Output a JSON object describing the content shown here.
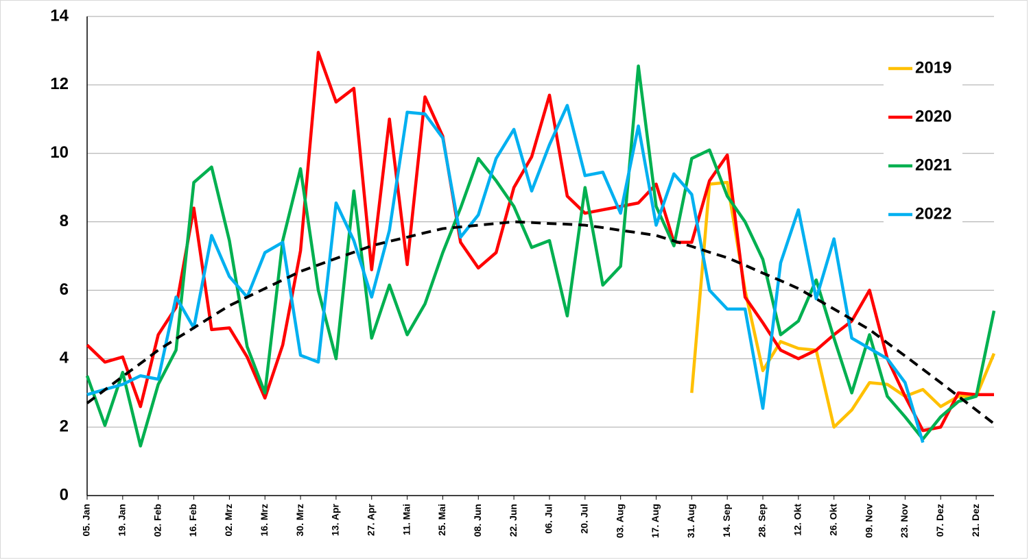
{
  "chart_data": {
    "type": "line",
    "categories": [
      "05. Jan",
      null,
      "19. Jan",
      null,
      "02. Feb",
      null,
      "16. Feb",
      null,
      "02. Mrz",
      null,
      "16. Mrz",
      null,
      "30. Mrz",
      null,
      "13. Apr",
      null,
      "27. Apr",
      null,
      "11. Mai",
      null,
      "25. Mai",
      null,
      "08. Jun",
      null,
      "22. Jun",
      null,
      "06. Jul",
      null,
      "20. Jul",
      null,
      "03. Aug",
      null,
      "17. Aug",
      null,
      "31. Aug",
      null,
      "14. Sep",
      null,
      "28. Sep",
      null,
      "12. Okt",
      null,
      "26. Okt",
      null,
      "09. Nov",
      null,
      "23. Nov",
      null,
      "07. Dez",
      null,
      "21. Dez",
      null
    ],
    "series": [
      {
        "name": "2019",
        "color": "#ffc000",
        "values": [
          null,
          null,
          null,
          null,
          null,
          null,
          null,
          null,
          null,
          null,
          null,
          null,
          null,
          null,
          null,
          null,
          null,
          null,
          null,
          null,
          null,
          null,
          null,
          null,
          null,
          null,
          null,
          null,
          null,
          null,
          null,
          null,
          null,
          null,
          3.0,
          9.1,
          9.15,
          6.0,
          3.65,
          4.5,
          4.3,
          4.25,
          2.0,
          2.5,
          3.3,
          3.25,
          2.9,
          3.1,
          2.6,
          2.9,
          2.9,
          4.15
        ]
      },
      {
        "name": "2020",
        "color": "#ff0000",
        "values": [
          4.4,
          3.9,
          4.05,
          2.6,
          4.7,
          5.5,
          8.4,
          4.85,
          4.9,
          4.05,
          2.85,
          4.4,
          7.15,
          12.95,
          11.5,
          11.9,
          6.6,
          11.0,
          6.75,
          11.65,
          10.5,
          7.4,
          6.65,
          7.1,
          9.0,
          9.9,
          11.7,
          8.75,
          8.25,
          8.35,
          8.45,
          8.55,
          9.1,
          7.4,
          7.4,
          9.2,
          9.95,
          5.8,
          5.05,
          4.25,
          4.0,
          4.25,
          4.7,
          5.1,
          6.0,
          4.0,
          2.9,
          1.9,
          2.0,
          3.0,
          2.95,
          2.95
        ]
      },
      {
        "name": "2021",
        "color": "#00b050",
        "values": [
          3.5,
          2.05,
          3.6,
          1.45,
          3.25,
          4.25,
          9.15,
          9.6,
          7.45,
          4.35,
          3.0,
          7.45,
          9.55,
          6.0,
          4.0,
          8.9,
          4.6,
          6.15,
          4.7,
          5.6,
          7.1,
          8.4,
          9.85,
          9.2,
          8.45,
          7.25,
          7.45,
          5.25,
          9.0,
          6.15,
          6.7,
          12.55,
          8.45,
          7.3,
          9.85,
          10.1,
          8.75,
          8.0,
          6.9,
          4.7,
          5.1,
          6.3,
          4.6,
          3.0,
          4.7,
          2.9,
          2.3,
          1.65,
          2.3,
          2.75,
          2.9,
          5.4
        ]
      },
      {
        "name": "2022",
        "color": "#00b0f0",
        "values": [
          2.95,
          3.1,
          3.25,
          3.5,
          3.4,
          5.8,
          4.9,
          7.6,
          6.4,
          5.8,
          7.1,
          7.4,
          4.1,
          3.9,
          8.55,
          7.45,
          5.8,
          7.75,
          11.2,
          11.15,
          10.45,
          7.55,
          8.2,
          9.85,
          10.7,
          8.9,
          10.25,
          11.4,
          9.35,
          9.45,
          8.25,
          10.8,
          7.9,
          9.4,
          8.8,
          6.0,
          5.45,
          5.45,
          2.55,
          6.8,
          8.35,
          5.75,
          7.5,
          4.6,
          4.3,
          4.0,
          3.3,
          1.55,
          null,
          null,
          null,
          null
        ]
      },
      {
        "color": "#000000",
        "dash": true,
        "values": [
          2.7,
          3.09,
          3.48,
          3.86,
          4.25,
          4.58,
          4.9,
          5.23,
          5.55,
          5.8,
          6.05,
          6.3,
          6.55,
          6.74,
          6.93,
          7.11,
          7.3,
          7.43,
          7.55,
          7.68,
          7.8,
          7.85,
          7.9,
          7.95,
          8.0,
          7.98,
          7.95,
          7.93,
          7.9,
          7.83,
          7.75,
          7.68,
          7.6,
          7.44,
          7.28,
          7.11,
          6.95,
          6.73,
          6.5,
          6.28,
          6.05,
          5.75,
          5.45,
          5.15,
          4.85,
          4.46,
          4.08,
          3.69,
          3.3,
          2.9,
          2.5,
          2.1
        ]
      }
    ],
    "ylim": [
      0,
      14
    ],
    "yticks": [
      0,
      2,
      4,
      6,
      8,
      10,
      12,
      14
    ],
    "grid": true,
    "legend": "right"
  }
}
